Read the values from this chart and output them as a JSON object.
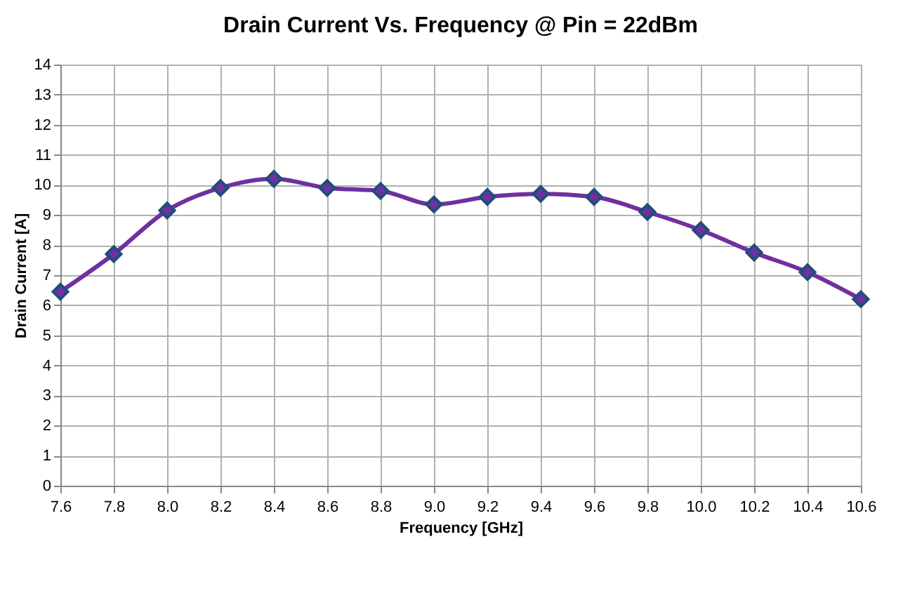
{
  "chart_data": {
    "type": "line",
    "title": "Drain Current Vs. Frequency @ Pin = 22dBm",
    "xlabel": "Frequency [GHz]",
    "ylabel": "Drain Current [A]",
    "x": [
      7.6,
      7.8,
      8.0,
      8.2,
      8.4,
      8.6,
      8.8,
      9.0,
      9.2,
      9.4,
      9.6,
      9.8,
      10.0,
      10.2,
      10.4,
      10.6
    ],
    "series": [
      {
        "color": "#7030a0",
        "values": [
          6.45,
          7.7,
          9.15,
          9.9,
          10.2,
          9.9,
          9.8,
          9.35,
          9.6,
          9.7,
          9.6,
          9.1,
          8.5,
          7.75,
          7.1,
          6.2
        ]
      }
    ],
    "xlim": [
      7.6,
      10.6
    ],
    "xticks": [
      7.6,
      7.8,
      {
        "value": 8,
        "label": "8.0"
      },
      8.2,
      8.4,
      8.6,
      8.8,
      {
        "value": 9,
        "label": "9.0"
      },
      9.2,
      9.4,
      9.6,
      9.8,
      {
        "value": 10,
        "label": "10.0"
      },
      10.2,
      10.4,
      10.6
    ],
    "ylim": [
      0,
      14
    ],
    "yticks": [
      0,
      1,
      2,
      3,
      4,
      5,
      6,
      7,
      8,
      9,
      10,
      11,
      12,
      13,
      14
    ],
    "grid": true,
    "legend": false,
    "marker": "diamond",
    "line_style": "solid"
  }
}
